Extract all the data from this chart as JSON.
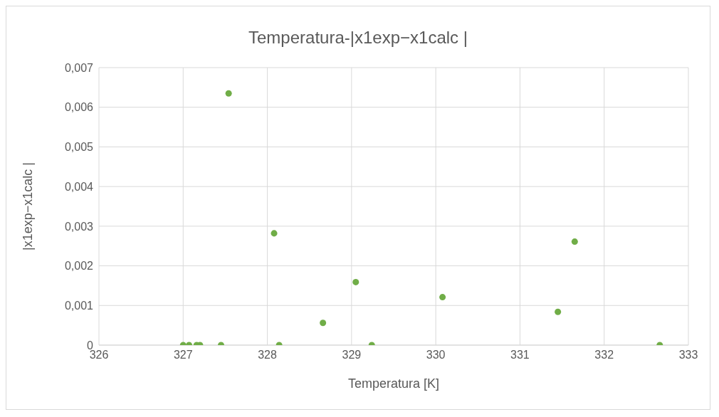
{
  "chart_data": {
    "type": "scatter",
    "title": "Temperatura-|x1exp−x1calc |",
    "xlabel": "Temperatura [K]",
    "ylabel": "|x1exp−x1calc |",
    "x": [
      327.0,
      327.07,
      327.16,
      327.2,
      327.45,
      327.54,
      328.08,
      328.14,
      328.66,
      329.05,
      329.24,
      330.08,
      331.45,
      331.65,
      332.66
    ],
    "series": [
      {
        "color": "#70ad47",
        "values": [
          0,
          0,
          0,
          0,
          0,
          0.00635,
          0.00282,
          0,
          0.00056,
          0.00159,
          0,
          0.00121,
          0.00084,
          0.00261,
          0
        ]
      }
    ],
    "xlim": [
      326,
      333
    ],
    "xticks": [
      326,
      327,
      328,
      329,
      330,
      331,
      332,
      333
    ],
    "ylim": [
      0,
      0.007
    ],
    "yticks": [
      0,
      {
        "value": 0.001,
        "label": "0,001"
      },
      {
        "value": 0.002,
        "label": "0,002"
      },
      {
        "value": 0.003,
        "label": "0,003"
      },
      {
        "value": 0.004,
        "label": "0,004"
      },
      {
        "value": 0.005,
        "label": "0,005"
      },
      {
        "value": 0.006,
        "label": "0,006"
      },
      {
        "value": 0.007,
        "label": "0,007"
      }
    ],
    "grid": true,
    "legend": false,
    "marker": "circle"
  }
}
